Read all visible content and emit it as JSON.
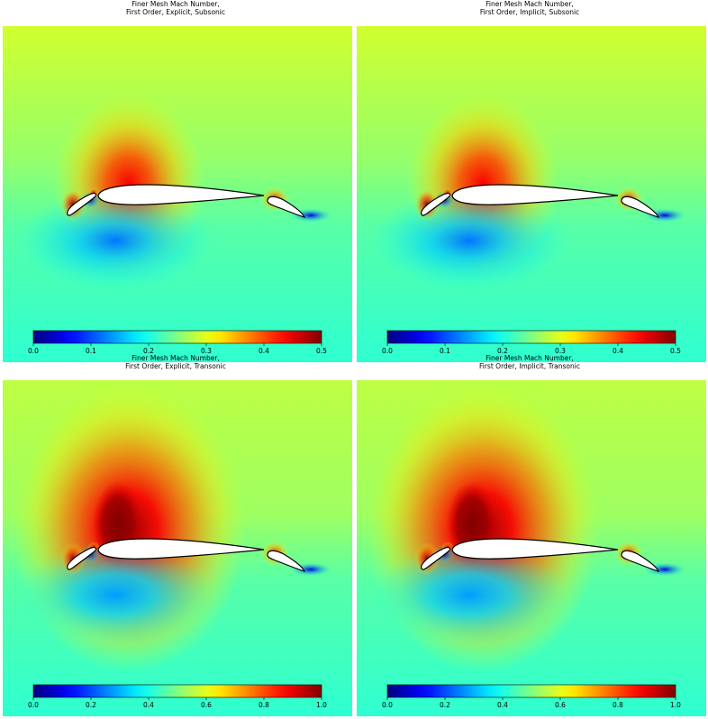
{
  "chart_data": [
    {
      "type": "heatmap",
      "title": "Finer Mesh Mach Number,",
      "subtitle": "First Order, Explicit, Subsonic",
      "colormap": "jet",
      "colorbar": {
        "min": 0.0,
        "max": 0.5,
        "ticks": [
          "0.0",
          "0.1",
          "0.2",
          "0.3",
          "0.4",
          "0.5"
        ]
      },
      "freestream": 0.25,
      "peak": 0.5
    },
    {
      "type": "heatmap",
      "title": "Finer Mesh Mach Number,",
      "subtitle": "First Order, Implicit, Subsonic",
      "colormap": "jet",
      "colorbar": {
        "min": 0.0,
        "max": 0.5,
        "ticks": [
          "0.0",
          "0.1",
          "0.2",
          "0.3",
          "0.4",
          "0.5"
        ]
      },
      "freestream": 0.25,
      "peak": 0.5
    },
    {
      "type": "heatmap",
      "title": "Finer Mesh Mach Number,",
      "subtitle": "First Order, Explicit, Transonic",
      "colormap": "jet",
      "colorbar": {
        "min": 0.0,
        "max": 1.0,
        "ticks": [
          "0.0",
          "0.2",
          "0.4",
          "0.6",
          "0.8",
          "1.0"
        ]
      },
      "freestream": 0.5,
      "peak": 1.0
    },
    {
      "type": "heatmap",
      "title": "Finer Mesh Mach Number,",
      "subtitle": "First Order, Implicit, Transonic",
      "colormap": "jet",
      "colorbar": {
        "min": 0.0,
        "max": 1.0,
        "ticks": [
          "0.0",
          "0.2",
          "0.4",
          "0.6",
          "0.8",
          "1.0"
        ]
      },
      "freestream": 0.5,
      "peak": 1.0
    }
  ]
}
